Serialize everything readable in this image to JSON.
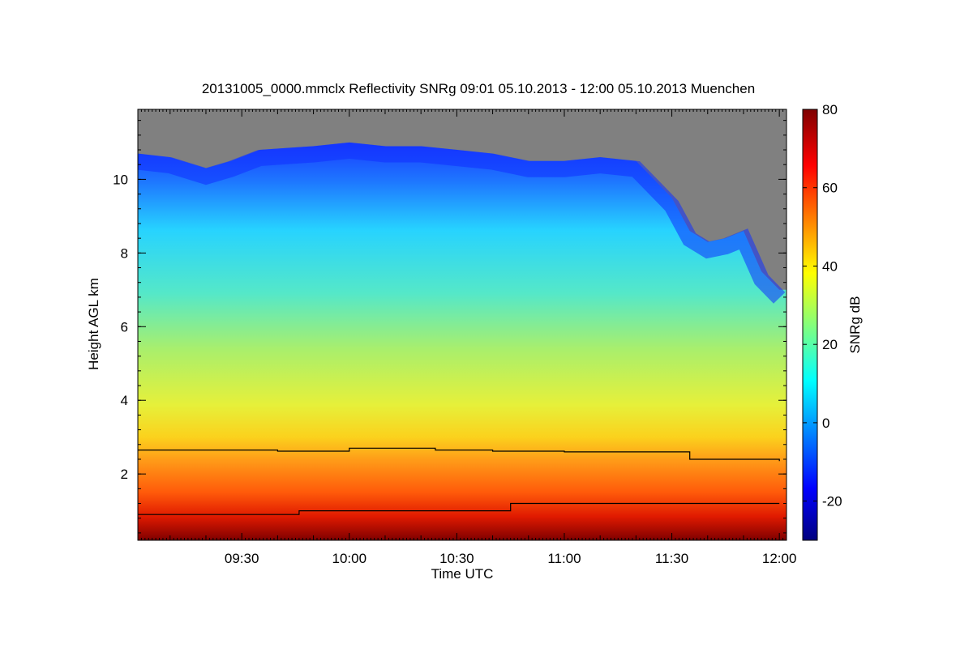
{
  "chart_data": {
    "type": "heatmap",
    "title": "20131005_0000.mmclx Reflectivity SNRg   09:01 05.10.2013 - 12:00 05.10.2013 Muenchen",
    "xlabel": "Time UTC",
    "ylabel": "Height AGL km",
    "colorbar_label": "SNRg dB",
    "x_range": [
      "09:01",
      "12:00"
    ],
    "xlim": [
      "09:01",
      "12:02"
    ],
    "ylim": [
      0.2,
      11.9
    ],
    "x_ticks": [
      "09:30",
      "10:00",
      "10:30",
      "11:00",
      "11:30",
      "12:00"
    ],
    "y_ticks": [
      2,
      4,
      6,
      8,
      10
    ],
    "colorbar_range": [
      -30,
      80
    ],
    "colorbar_ticks": [
      -20,
      0,
      20,
      40,
      60,
      80
    ],
    "colormap": [
      "#00007f",
      "#0000ff",
      "#00ffff",
      "#ffff00",
      "#ff0000",
      "#7f0000"
    ],
    "no_data_color": "#808080",
    "cloud_top_km": [
      {
        "x": "09:01",
        "y": 10.7
      },
      {
        "x": "09:10",
        "y": 10.6
      },
      {
        "x": "09:20",
        "y": 10.3
      },
      {
        "x": "09:27",
        "y": 10.5
      },
      {
        "x": "09:35",
        "y": 10.8
      },
      {
        "x": "09:50",
        "y": 10.9
      },
      {
        "x": "10:00",
        "y": 11.0
      },
      {
        "x": "10:10",
        "y": 10.9
      },
      {
        "x": "10:20",
        "y": 10.9
      },
      {
        "x": "10:30",
        "y": 10.8
      },
      {
        "x": "10:40",
        "y": 10.7
      },
      {
        "x": "10:50",
        "y": 10.5
      },
      {
        "x": "11:00",
        "y": 10.5
      },
      {
        "x": "11:10",
        "y": 10.6
      },
      {
        "x": "11:20",
        "y": 10.5
      },
      {
        "x": "11:25",
        "y": 10.0
      },
      {
        "x": "11:30",
        "y": 9.5
      },
      {
        "x": "11:35",
        "y": 8.6
      },
      {
        "x": "11:40",
        "y": 8.3
      },
      {
        "x": "11:45",
        "y": 8.4
      },
      {
        "x": "11:50",
        "y": 8.6
      },
      {
        "x": "11:55",
        "y": 7.5
      },
      {
        "x": "12:00",
        "y": 7.0
      }
    ],
    "series": [
      {
        "x": [
          "09:01",
          "09:20",
          "09:40",
          "10:00",
          "10:24",
          "10:40",
          "11:00",
          "11:30",
          "11:35",
          "11:45",
          "12:00"
        ],
        "y": [
          2.65,
          2.65,
          2.62,
          2.7,
          2.65,
          2.62,
          2.6,
          2.6,
          2.4,
          2.4,
          2.35
        ]
      },
      {
        "x": [
          "09:01",
          "09:45",
          "09:46",
          "10:44",
          "10:45",
          "12:00"
        ],
        "y": [
          0.9,
          0.9,
          1.0,
          1.0,
          1.2,
          1.2
        ]
      }
    ]
  }
}
